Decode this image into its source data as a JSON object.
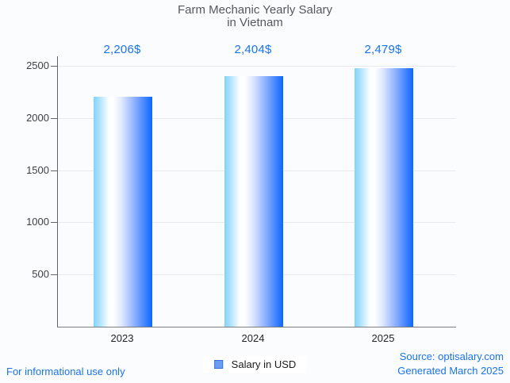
{
  "title": {
    "line1": "Farm Mechanic Yearly Salary",
    "line2": "in Vietnam"
  },
  "chart_data": {
    "type": "bar",
    "title": "Farm Mechanic Yearly Salary in Vietnam",
    "categories": [
      "2023",
      "2024",
      "2025"
    ],
    "values": [
      2206,
      2404,
      2479
    ],
    "value_labels": [
      "2,206$",
      "2,404$",
      "2,479$"
    ],
    "series_name": "Salary in USD",
    "xlabel": "",
    "ylabel": "",
    "ylim": [
      0,
      2500
    ],
    "yticks": [
      500,
      1000,
      1500,
      2000,
      2500
    ],
    "grid": "horizontal",
    "legend_position": "bottom-center",
    "bar_gradient": [
      "#82d2fa",
      "#ffffff",
      "#0c67fe"
    ]
  },
  "legend": {
    "label": "Salary in USD",
    "marker_color": "#6a9ff0",
    "marker_border": "#3d6fd8"
  },
  "footer": {
    "left": "For informational use only",
    "source": "Source: optisalary.com",
    "generated": "Generated March 2025"
  },
  "colors": {
    "accent_blue": "#1a73e8",
    "title_gray": "#56575b",
    "axis_gray": "#7d7d85",
    "grid_gray": "#e9eaee",
    "background": "#fbfcfe"
  }
}
